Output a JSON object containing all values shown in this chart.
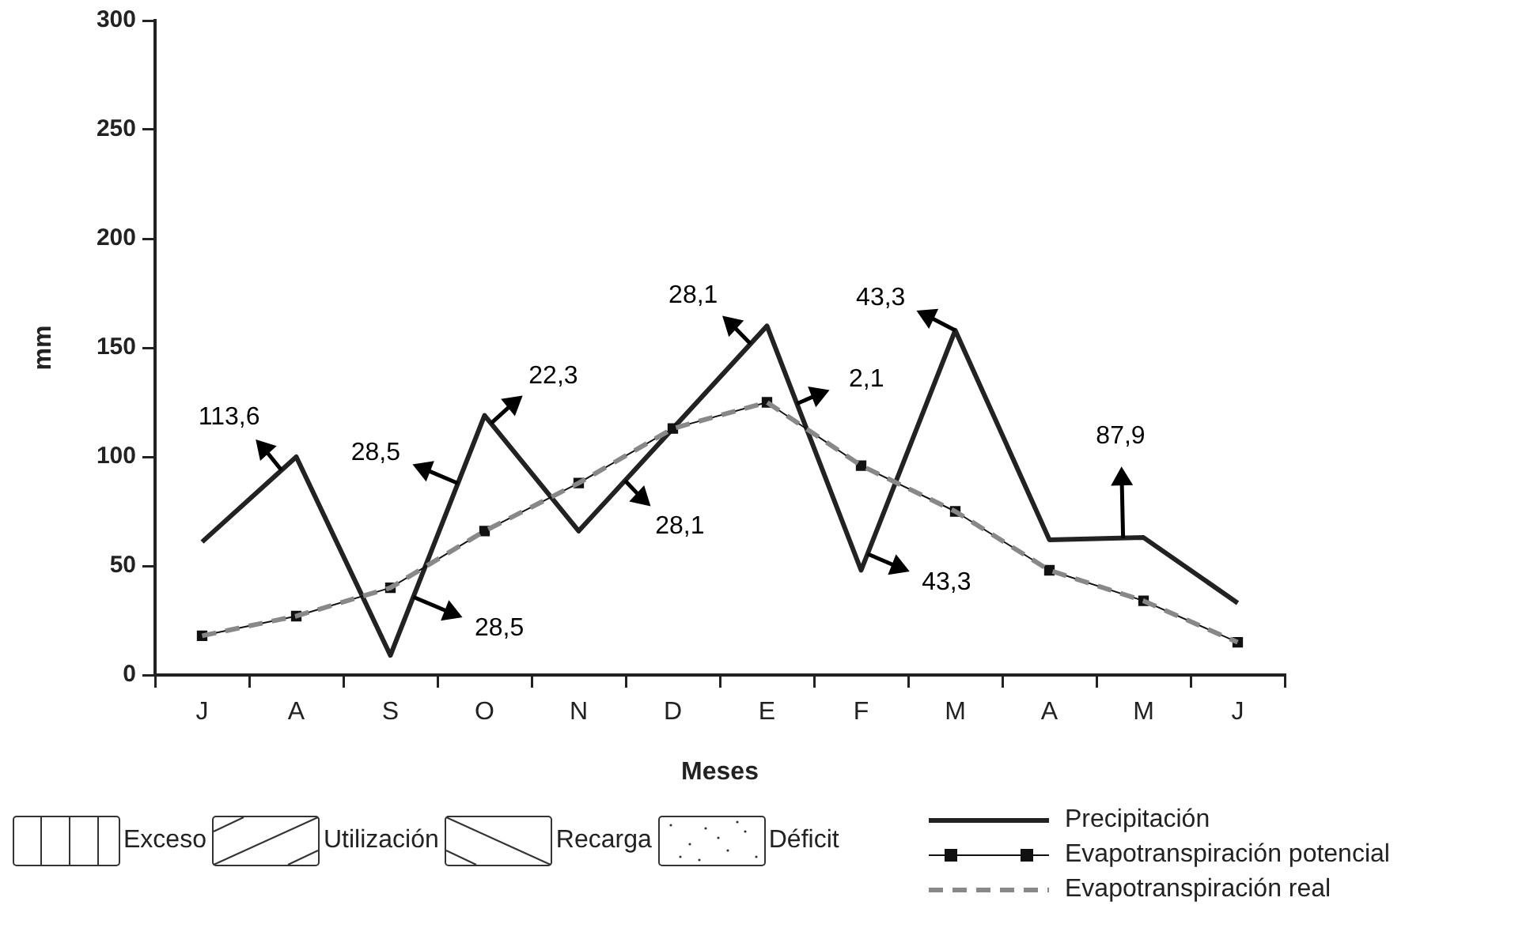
{
  "chart_data": {
    "type": "line",
    "xlabel": "Meses",
    "ylabel": "mm",
    "categories": [
      "J",
      "A",
      "S",
      "O",
      "N",
      "D",
      "E",
      "F",
      "M",
      "A",
      "M",
      "J"
    ],
    "ylim": [
      0,
      300
    ],
    "yticks": [
      0,
      50,
      100,
      150,
      200,
      250,
      300
    ],
    "grid": false,
    "legend": "bottom",
    "series": [
      {
        "name": "Precipitación",
        "color": "#222222",
        "marker": "none",
        "line_style": "solid",
        "values": [
          61,
          100,
          9,
          119,
          66,
          113,
          160,
          48,
          158,
          62,
          63,
          33
        ]
      },
      {
        "name": "Evapotranspiración potencial",
        "color": "#111111",
        "marker": "square",
        "line_style": "solid",
        "values": [
          18,
          27,
          40,
          66,
          88,
          113,
          125,
          96,
          75,
          48,
          34,
          15
        ]
      },
      {
        "name": "Evapotranspiración real",
        "color": "#888888",
        "marker": "none",
        "line_style": "dashed",
        "values": [
          18,
          27,
          40,
          66,
          88,
          113,
          125,
          96,
          75,
          48,
          34,
          15
        ]
      }
    ],
    "annotations": [
      "113,6",
      "28,5",
      "22,3",
      "28,5",
      "28,1",
      "28,1",
      "2,1",
      "43,3",
      "43,3",
      "87,9",
      "Exceso",
      "Utilización",
      "Recarga",
      "Déficit"
    ]
  }
}
